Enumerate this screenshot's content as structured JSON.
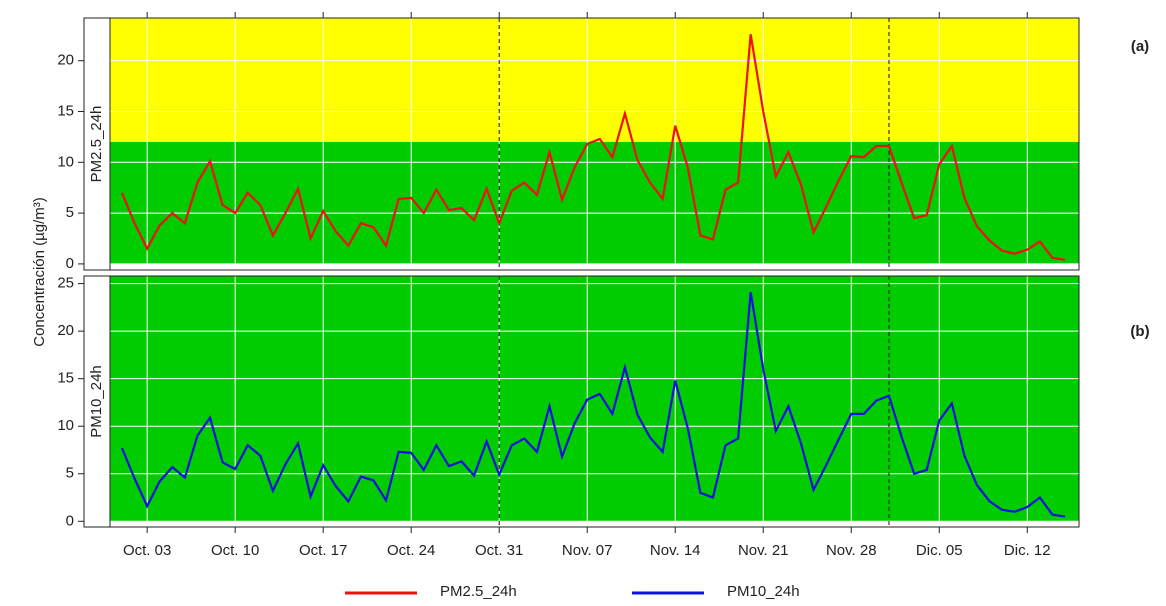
{
  "chart_data": [
    {
      "type": "line",
      "panel_label": "(a)",
      "ylabel": "Concentración (µg/m³)",
      "ylim": [
        -0.6,
        24.2
      ],
      "yticks": [
        0,
        5,
        10,
        15,
        20
      ],
      "grid": true,
      "bands": [
        {
          "from": 12,
          "to": 24.2,
          "color": "#ffff00"
        },
        {
          "from": 0,
          "to": 12,
          "color": "#00cc00"
        }
      ],
      "vlines": [
        30,
        61
      ],
      "series": [
        {
          "name": "PM2.5_24h",
          "color": "#ee1111",
          "values": [
            7.0,
            4.0,
            1.5,
            3.8,
            5.0,
            4.0,
            8.0,
            10.1,
            5.8,
            5.0,
            7.0,
            5.8,
            2.8,
            5.0,
            7.4,
            2.5,
            5.2,
            3.2,
            1.8,
            4.0,
            3.6,
            1.8,
            6.4,
            6.5,
            5.0,
            7.3,
            5.3,
            5.5,
            4.3,
            7.4,
            4.0,
            7.2,
            8.0,
            6.8,
            11.0,
            6.3,
            9.5,
            11.8,
            12.3,
            10.5,
            14.8,
            10.2,
            8.0,
            6.4,
            13.6,
            9.5,
            2.8,
            2.4,
            7.3,
            8.0,
            22.6,
            15.0,
            8.6,
            11.0,
            7.8,
            3.1,
            5.6,
            8.2,
            10.6,
            10.5,
            11.6,
            11.6,
            8.0,
            4.5,
            4.8,
            9.8,
            11.6,
            6.5,
            3.7,
            2.3,
            1.3,
            1.0,
            1.4,
            2.2,
            0.6,
            0.4
          ]
        }
      ]
    },
    {
      "type": "line",
      "panel_label": "(b)",
      "ylim": [
        -0.6,
        25.8
      ],
      "yticks": [
        0,
        5,
        10,
        15,
        20,
        25
      ],
      "grid": true,
      "bands": [
        {
          "from": 0,
          "to": 25.8,
          "color": "#00cc00"
        }
      ],
      "vlines": [
        30,
        61
      ],
      "categories": [
        null,
        null,
        "Oct. 03",
        null,
        null,
        null,
        null,
        null,
        null,
        "Oct. 10",
        null,
        null,
        null,
        null,
        null,
        null,
        "Oct. 17",
        null,
        null,
        null,
        null,
        null,
        null,
        "Oct. 24",
        null,
        null,
        null,
        null,
        null,
        null,
        "Oct. 31",
        null,
        null,
        null,
        null,
        null,
        null,
        "Nov. 07",
        null,
        null,
        null,
        null,
        null,
        null,
        "Nov. 14",
        null,
        null,
        null,
        null,
        null,
        null,
        "Nov. 21",
        null,
        null,
        null,
        null,
        null,
        null,
        "Nov. 28",
        null,
        null,
        null,
        null,
        null,
        null,
        "Dic. 05",
        null,
        null,
        null,
        null,
        null,
        null,
        "Dic. 12",
        null,
        null,
        null
      ],
      "series": [
        {
          "name": "PM10_24h",
          "color": "#1111dd",
          "values": [
            7.7,
            4.5,
            1.6,
            4.2,
            5.7,
            4.6,
            9.0,
            10.9,
            6.2,
            5.5,
            8.0,
            6.9,
            3.2,
            6.0,
            8.2,
            2.6,
            5.9,
            3.7,
            2.1,
            4.7,
            4.3,
            2.2,
            7.3,
            7.2,
            5.4,
            8.0,
            5.8,
            6.3,
            4.8,
            8.4,
            4.9,
            8.0,
            8.7,
            7.3,
            12.1,
            6.8,
            10.3,
            12.8,
            13.4,
            11.3,
            16.2,
            11.2,
            8.8,
            7.3,
            14.8,
            9.8,
            3.0,
            2.5,
            8.0,
            8.7,
            24.1,
            16.0,
            9.5,
            12.1,
            8.2,
            3.3,
            5.9,
            8.6,
            11.3,
            11.3,
            12.7,
            13.2,
            8.9,
            5.0,
            5.4,
            10.6,
            12.4,
            6.9,
            3.8,
            2.1,
            1.2,
            1.0,
            1.5,
            2.5,
            0.7,
            0.5
          ]
        }
      ]
    }
  ]
}
